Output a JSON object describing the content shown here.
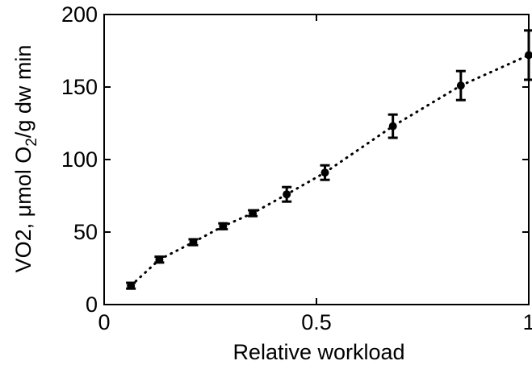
{
  "chart_data": {
    "type": "scatter",
    "title": "",
    "xlabel": "Relative workload",
    "ylabel": {
      "prefix": "VO2, μmol O",
      "subscript": "2",
      "suffix": "/g dw min"
    },
    "xlim": [
      0,
      1.0
    ],
    "ylim": [
      0,
      200
    ],
    "xticks": [
      0,
      0.5,
      1
    ],
    "xtick_labels": [
      "0",
      "0.5",
      "1"
    ],
    "yticks": [
      0,
      50,
      100,
      150,
      200
    ],
    "ytick_labels": [
      "0",
      "50",
      "100",
      "150",
      "200"
    ],
    "grid": false,
    "legend": "none",
    "marker": "filled circle",
    "fit_line": "dotted",
    "points": [
      {
        "x": 0.063,
        "y": 13,
        "err": 2
      },
      {
        "x": 0.13,
        "y": 31,
        "err": 2
      },
      {
        "x": 0.21,
        "y": 43,
        "err": 2
      },
      {
        "x": 0.28,
        "y": 54,
        "err": 2
      },
      {
        "x": 0.35,
        "y": 63,
        "err": 2
      },
      {
        "x": 0.43,
        "y": 76,
        "err": 5
      },
      {
        "x": 0.52,
        "y": 91,
        "err": 5
      },
      {
        "x": 0.68,
        "y": 123,
        "err": 8
      },
      {
        "x": 0.84,
        "y": 151,
        "err": 10
      },
      {
        "x": 1.0,
        "y": 172,
        "err": 17
      }
    ],
    "colors": {
      "ink": "#000000",
      "background": "#ffffff"
    }
  }
}
